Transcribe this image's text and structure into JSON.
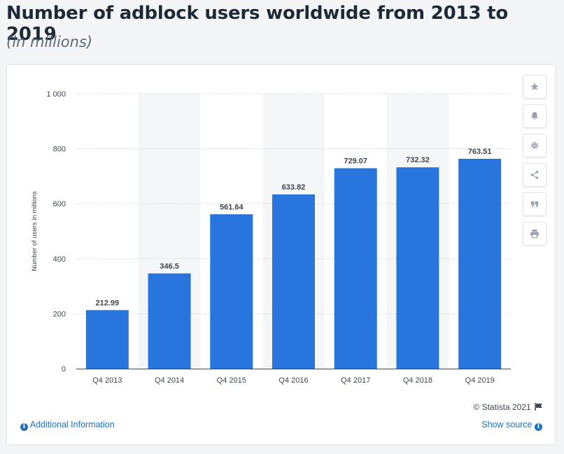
{
  "header": {
    "title": "Number of adblock users worldwide from 2013 to 2019",
    "subtitle": "(in millions)"
  },
  "chart_data": {
    "type": "bar",
    "categories": [
      "Q4 2013",
      "Q4 2014",
      "Q4 2015",
      "Q4 2016",
      "Q4 2017",
      "Q4 2018",
      "Q4 2019"
    ],
    "values": [
      212.99,
      346.5,
      561.64,
      633.82,
      729.07,
      732.32,
      763.51
    ],
    "value_labels": [
      "212.99",
      "346.5",
      "561.64",
      "633.82",
      "729.07",
      "732.32",
      "763.51"
    ],
    "ylabel": "Number of users in millions",
    "xlabel": "",
    "ylim": [
      0,
      1000
    ],
    "yticks": [
      0,
      200,
      400,
      600,
      800,
      1000
    ],
    "ytick_labels": [
      "0",
      "200",
      "400",
      "600",
      "800",
      "1 000"
    ],
    "bar_color": "#2876dd",
    "grid": true,
    "alternating_band_color": "#f5f6f7"
  },
  "toolbar": {
    "items": [
      "star-icon",
      "bell-icon",
      "gear-icon",
      "share-icon",
      "quote-icon",
      "print-icon"
    ]
  },
  "footer": {
    "copyright": "© Statista 2021",
    "additional_info": "Additional Information",
    "show_source": "Show source"
  },
  "colors": {
    "link": "#2270b8",
    "title": "#1e2a37",
    "subtitle": "#5c6978"
  }
}
